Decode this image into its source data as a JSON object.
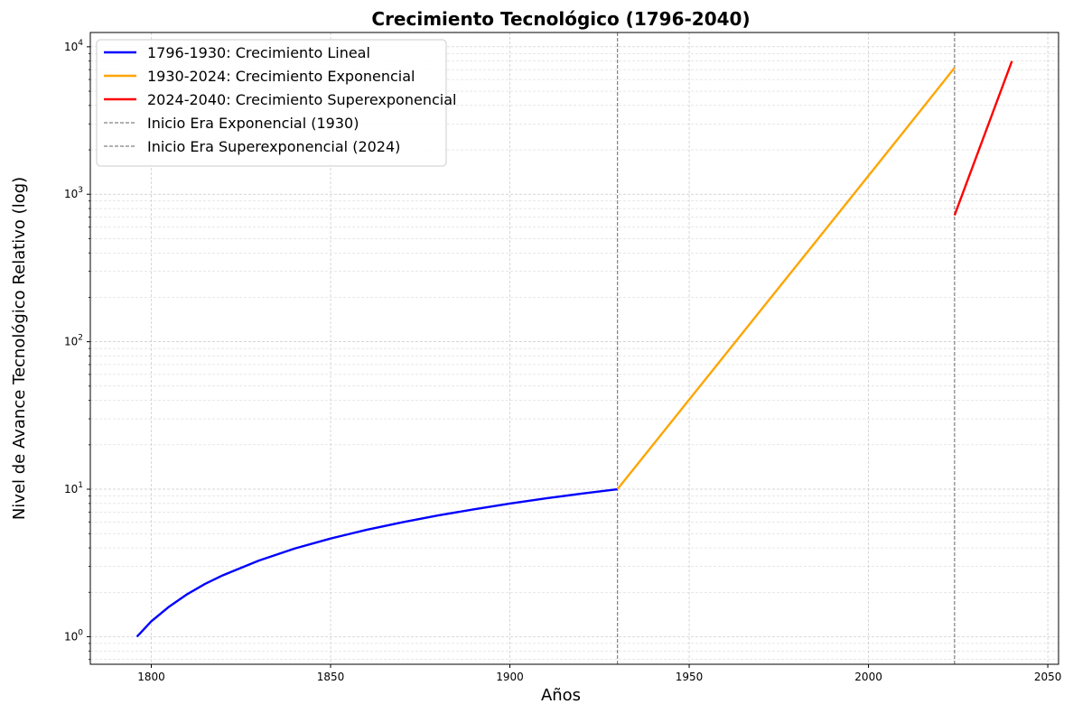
{
  "chart_data": {
    "type": "line",
    "title": "Crecimiento Tecnológico (1796-2040)",
    "xlabel": "Años",
    "ylabel": "Nivel de Avance Tecnológico Relativo (log)",
    "xlim": [
      1783,
      2053
    ],
    "ylim": [
      0.65,
      12500
    ],
    "yscale": "log",
    "grid": true,
    "legend_position": "top-left",
    "x_ticks": [
      1800,
      1850,
      1900,
      1950,
      2000,
      2050
    ],
    "y_ticks": [
      {
        "value": 1,
        "base": "10",
        "exp": "0"
      },
      {
        "value": 10,
        "base": "10",
        "exp": "1"
      },
      {
        "value": 100,
        "base": "10",
        "exp": "2"
      },
      {
        "value": 1000,
        "base": "10",
        "exp": "3"
      },
      {
        "value": 10000,
        "base": "10",
        "exp": "4"
      }
    ],
    "series": [
      {
        "name": "1796-1930: Crecimiento Lineal",
        "color": "#0000ff",
        "style": "solid",
        "x": [
          1796,
          1800,
          1805,
          1810,
          1815,
          1820,
          1830,
          1840,
          1850,
          1860,
          1870,
          1880,
          1890,
          1900,
          1910,
          1920,
          1930
        ],
        "y": [
          1.0,
          1.27,
          1.6,
          1.94,
          2.28,
          2.61,
          3.28,
          3.96,
          4.63,
          5.3,
          5.97,
          6.64,
          7.31,
          7.99,
          8.66,
          9.33,
          10.0
        ]
      },
      {
        "name": "1930-2024: Crecimiento Exponencial",
        "color": "#ffa500",
        "style": "solid",
        "x": [
          1930,
          1950,
          1970,
          1990,
          2010,
          2024
        ],
        "y": [
          10,
          40.5,
          164,
          663,
          2690,
          7200
        ]
      },
      {
        "name": "2024-2040: Crecimiento Superexponencial",
        "color": "#ff0000",
        "style": "solid",
        "x": [
          2024,
          2040
        ],
        "y": [
          720,
          8000
        ]
      }
    ],
    "reference_lines": [
      {
        "name": "Inicio Era Exponencial (1930)",
        "x": 1930,
        "color": "#808080",
        "style": "dashed"
      },
      {
        "name": "Inicio Era Superexponencial (2024)",
        "x": 2024,
        "color": "#808080",
        "style": "dashed"
      }
    ]
  }
}
